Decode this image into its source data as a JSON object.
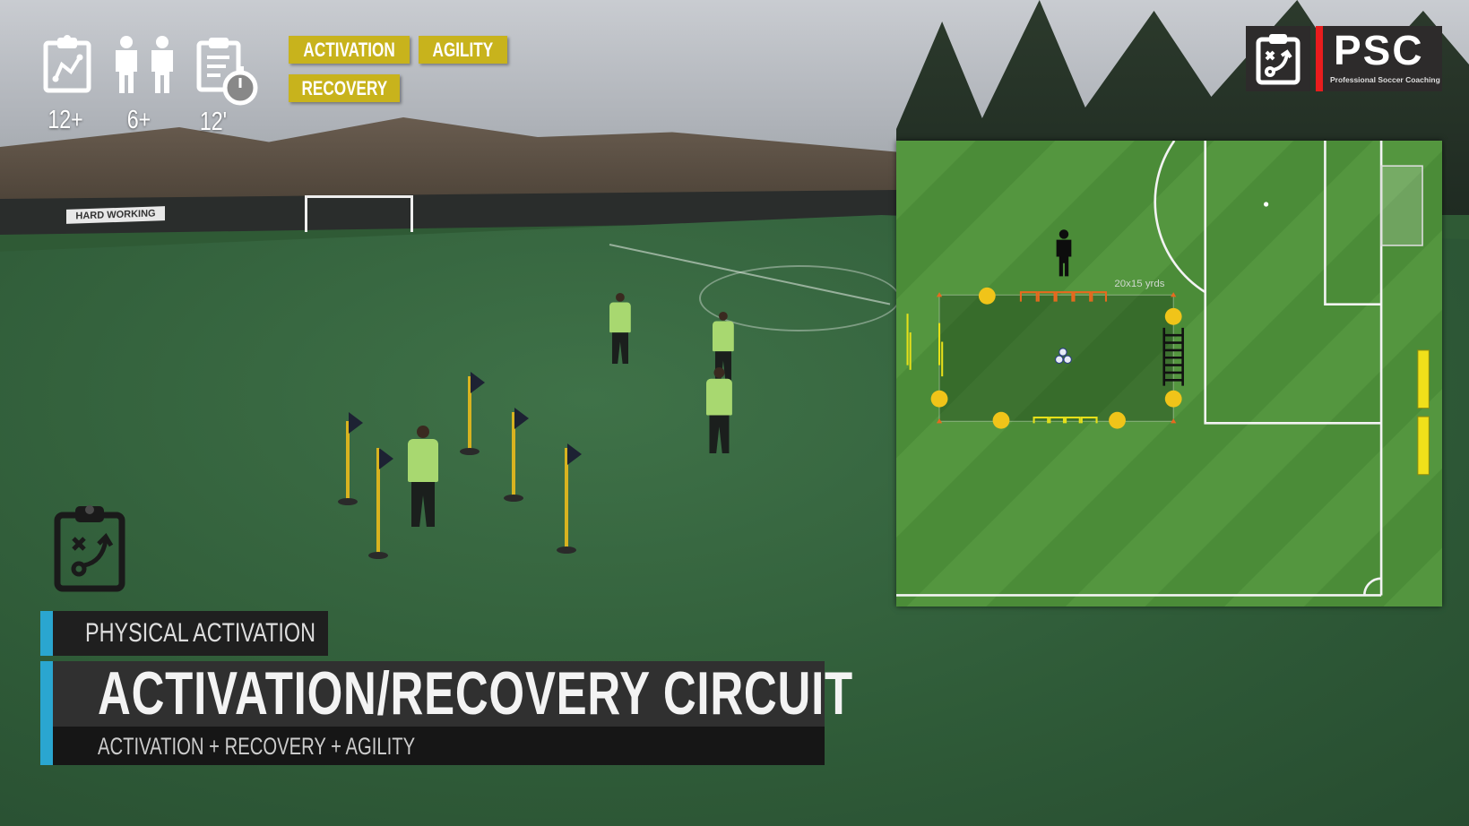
{
  "stats": [
    {
      "icon": "clipboard-chart-icon",
      "value": "12+"
    },
    {
      "icon": "players-icon",
      "value": "6+"
    },
    {
      "icon": "clipboard-stopwatch-icon",
      "value": "12'"
    }
  ],
  "tags": [
    "ACTIVATION",
    "AGILITY",
    "RECOVERY"
  ],
  "logo": {
    "mark": "PSC",
    "subtitle": "Professional Soccer Coaching",
    "icon": "clipboard-tactics-icon"
  },
  "scene": {
    "banner": "HARD WORKING"
  },
  "diagram": {
    "area_label": "20x15 yrds"
  },
  "session": {
    "category": "PHYSICAL ACTIVATION",
    "title": "ACTIVATION/RECOVERY CIRCUIT",
    "subtitle": "ACTIVATION + RECOVERY + AGILITY"
  },
  "colors": {
    "tag": "#c8b31c",
    "accent": "#2aa6d0",
    "logo_red": "#e81d1d"
  }
}
